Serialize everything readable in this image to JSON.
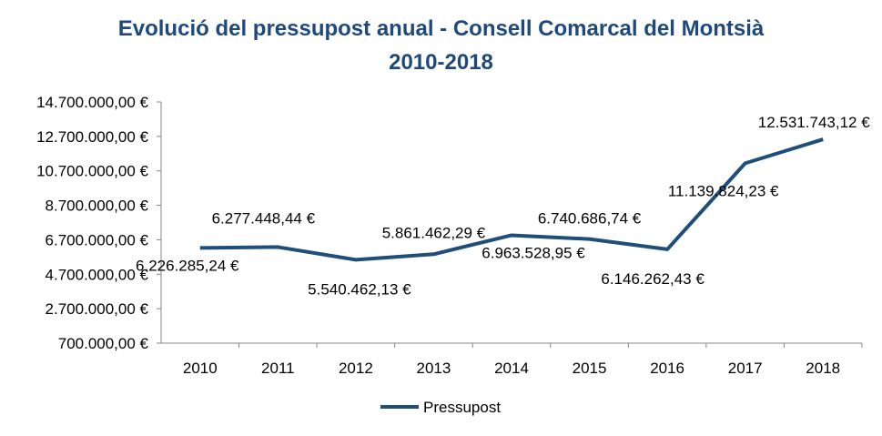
{
  "chart_data": {
    "type": "line",
    "title_line1": "Evolució del pressupost anual - Consell Comarcal del Montsià",
    "title_line2": "2010-2018",
    "categories": [
      "2010",
      "2011",
      "2012",
      "2013",
      "2014",
      "2015",
      "2016",
      "2017",
      "2018"
    ],
    "series": [
      {
        "name": "Pressupost",
        "color": "#1f4e79",
        "values": [
          6226285.24,
          6277448.44,
          5540462.13,
          5861462.29,
          6963528.95,
          6740686.74,
          6146262.43,
          11139824.23,
          12531743.12
        ],
        "labels": [
          "6.226.285,24 €",
          "6.277.448,44 €",
          "5.540.462,13 €",
          "5.861.462,29 €",
          "6.963.528,95 €",
          "6.740.686,74 €",
          "6.146.262,43 €",
          "11.139.824,23 €",
          "12.531.743,12 €"
        ]
      }
    ],
    "ylim": [
      700000,
      14700000
    ],
    "yticks": [
      700000,
      2700000,
      4700000,
      6700000,
      8700000,
      10700000,
      12700000,
      14700000
    ],
    "ytick_labels": [
      "700.000,00 €",
      "2.700.000,00 €",
      "4.700.000,00 €",
      "6.700.000,00 €",
      "8.700.000,00 €",
      "10.700.000,00 €",
      "12.700.000,00 €",
      "14.700.000,00 €"
    ],
    "grid": false,
    "legend": "bottom"
  }
}
